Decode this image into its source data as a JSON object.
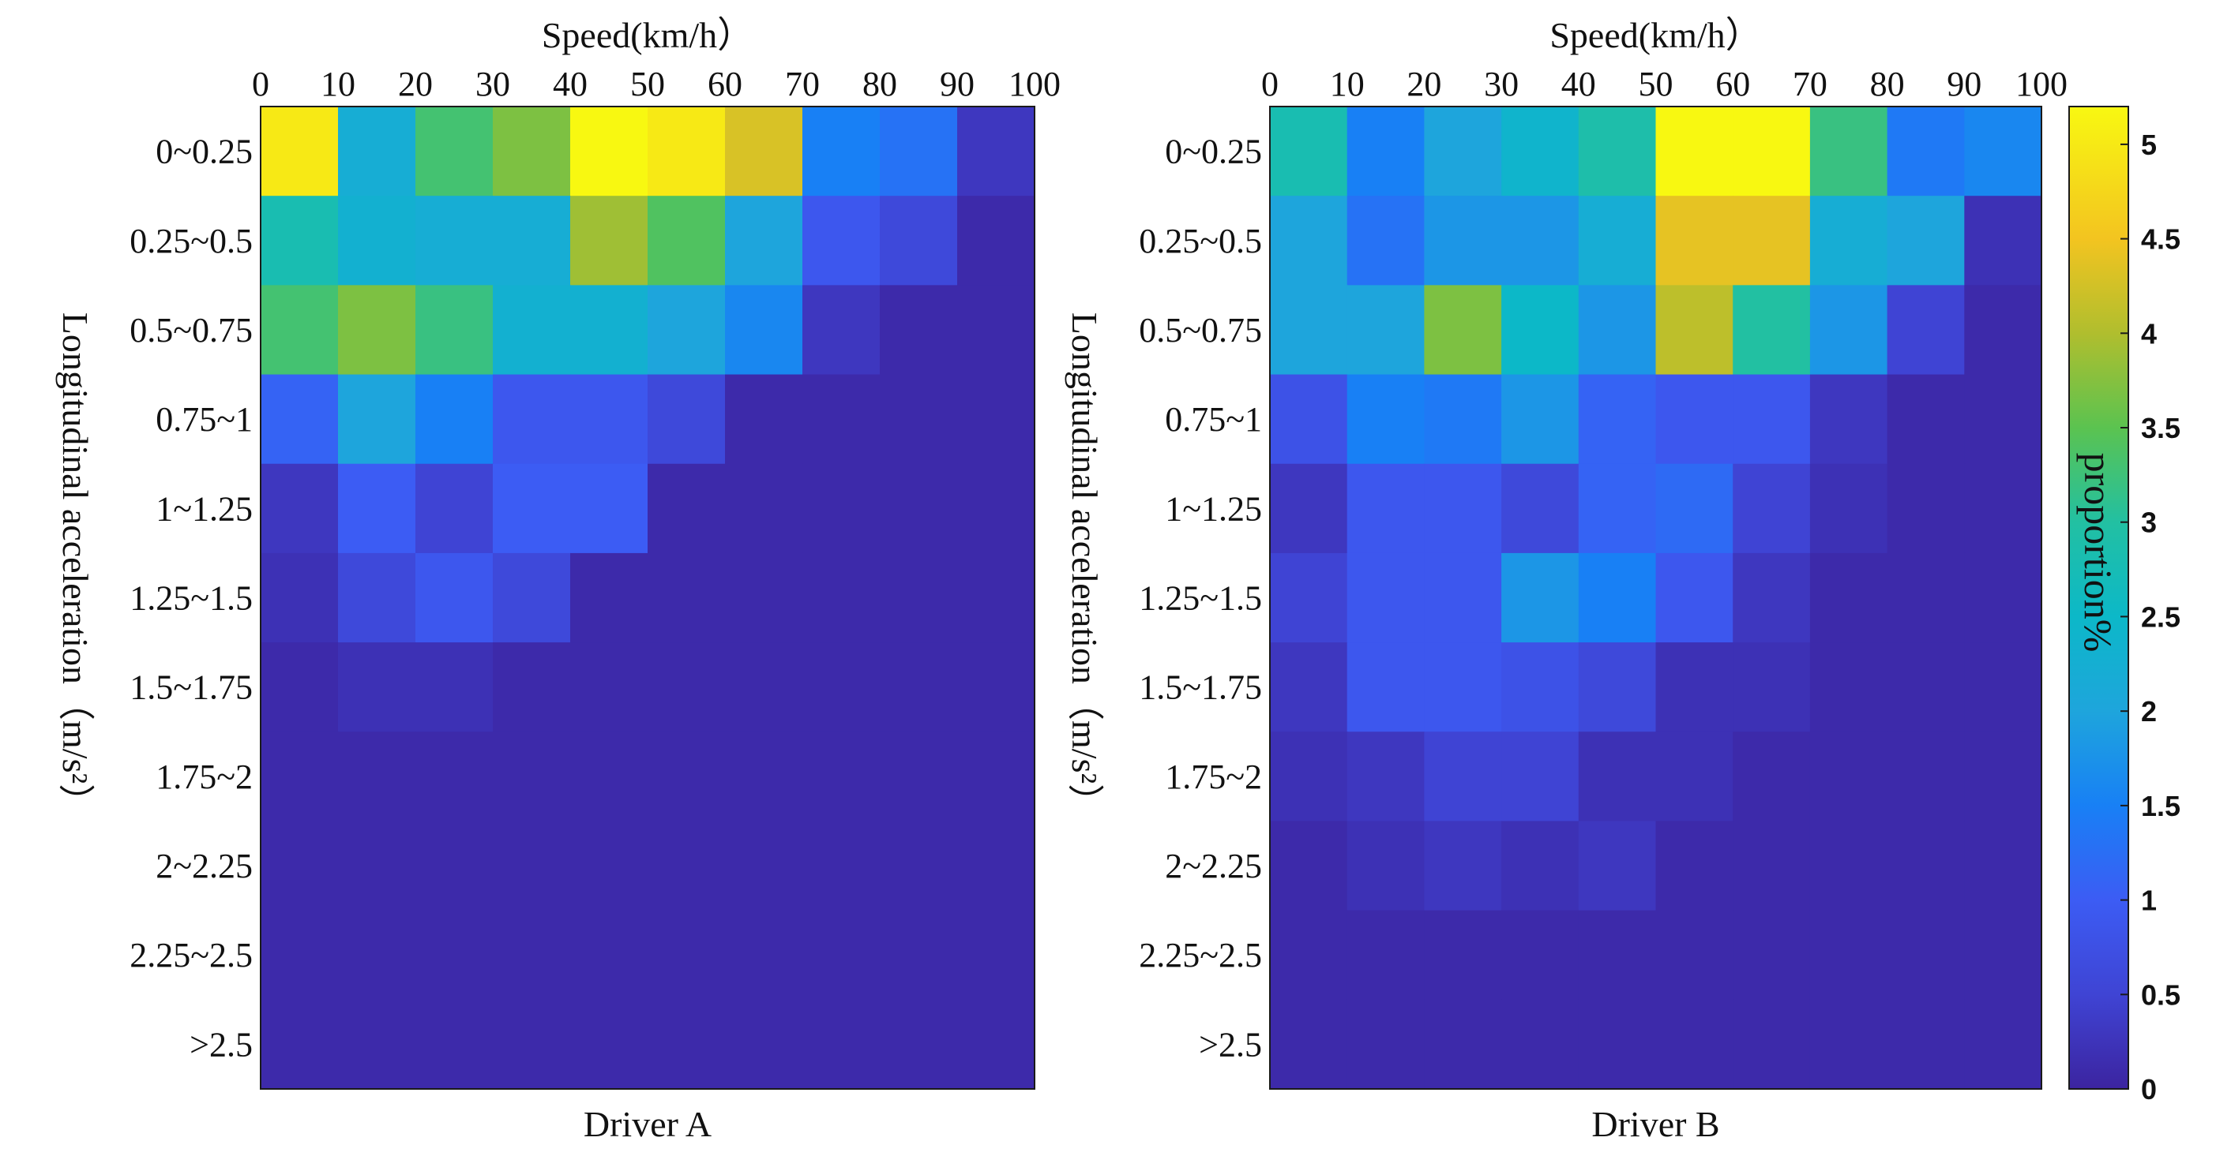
{
  "chart_data": {
    "type": "heatmap",
    "colorbar": {
      "label": "proportion%",
      "range": [
        0,
        5.2
      ],
      "ticks": [
        "0",
        "0.5",
        "1",
        "1.5",
        "2",
        "2.5",
        "3",
        "3.5",
        "4",
        "4.5",
        "5"
      ]
    },
    "panels": [
      {
        "name": "Driver A",
        "xlabel": "Driver A",
        "top_label": "Speed(km/h）",
        "ylabel": "Longitudinal acceleration（m/s²）",
        "x_ticks": [
          "0",
          "10",
          "20",
          "30",
          "40",
          "50",
          "60",
          "70",
          "80",
          "90",
          "100"
        ],
        "y_categories": [
          "0~0.25",
          "0.25~0.5",
          "0.5~0.75",
          "0.75~1",
          "1~1.25",
          "1.25~1.5",
          "1.5~1.75",
          "1.75~2",
          "2~2.25",
          "2.25~2.5",
          ">2.5"
        ],
        "values": [
          [
            5.0,
            2.2,
            3.3,
            3.7,
            5.2,
            5.0,
            4.3,
            1.5,
            1.3,
            0.3
          ],
          [
            2.8,
            2.3,
            2.2,
            2.2,
            3.9,
            3.4,
            2.0,
            0.9,
            0.6,
            0.1
          ],
          [
            3.3,
            3.7,
            3.2,
            2.3,
            2.3,
            2.0,
            1.6,
            0.3,
            0.1,
            0.1
          ],
          [
            1.1,
            2.0,
            1.5,
            0.9,
            0.9,
            0.6,
            0.1,
            0.1,
            0.1,
            0.1
          ],
          [
            0.3,
            1.0,
            0.5,
            1.0,
            1.0,
            0.1,
            0.1,
            0.1,
            0.1,
            0.1
          ],
          [
            0.2,
            0.6,
            0.9,
            0.6,
            0.1,
            0.1,
            0.1,
            0.1,
            0.1,
            0.1
          ],
          [
            0.1,
            0.2,
            0.2,
            0.1,
            0.1,
            0.1,
            0.1,
            0.1,
            0.1,
            0.1
          ],
          [
            0.1,
            0.1,
            0.1,
            0.1,
            0.1,
            0.1,
            0.1,
            0.1,
            0.1,
            0.1
          ],
          [
            0.1,
            0.1,
            0.1,
            0.1,
            0.1,
            0.1,
            0.1,
            0.1,
            0.1,
            0.1
          ],
          [
            0.1,
            0.1,
            0.1,
            0.1,
            0.1,
            0.1,
            0.1,
            0.1,
            0.1,
            0.1
          ],
          [
            0.1,
            0.1,
            0.1,
            0.1,
            0.1,
            0.1,
            0.1,
            0.1,
            0.1,
            0.1
          ]
        ]
      },
      {
        "name": "Driver B",
        "xlabel": "Driver B",
        "top_label": "Speed(km/h）",
        "ylabel": "Longitudinal acceleration（m/s²）",
        "x_ticks": [
          "0",
          "10",
          "20",
          "30",
          "40",
          "50",
          "60",
          "70",
          "80",
          "90",
          "100"
        ],
        "y_categories": [
          "0~0.25",
          "0.25~0.5",
          "0.5~0.75",
          "0.75~1",
          "1~1.25",
          "1.25~1.5",
          "1.5~1.75",
          "1.75~2",
          "2~2.25",
          "2.25~2.5",
          ">2.5"
        ],
        "values": [
          [
            2.8,
            1.5,
            2.0,
            2.4,
            2.9,
            5.2,
            5.2,
            3.2,
            1.4,
            1.6
          ],
          [
            2.0,
            1.3,
            1.8,
            1.8,
            2.2,
            4.4,
            4.4,
            2.2,
            2.0,
            0.2
          ],
          [
            2.0,
            2.0,
            3.7,
            2.5,
            1.8,
            4.1,
            3.0,
            1.8,
            0.5,
            0.1
          ],
          [
            0.8,
            1.5,
            1.4,
            1.8,
            1.1,
            0.9,
            0.9,
            0.3,
            0.1,
            0.1
          ],
          [
            0.3,
            0.9,
            0.9,
            0.6,
            1.1,
            1.2,
            0.5,
            0.2,
            0.1,
            0.1
          ],
          [
            0.5,
            0.9,
            0.9,
            1.8,
            1.5,
            0.9,
            0.3,
            0.1,
            0.1,
            0.1
          ],
          [
            0.3,
            0.9,
            0.9,
            0.8,
            0.6,
            0.2,
            0.2,
            0.1,
            0.1,
            0.1
          ],
          [
            0.2,
            0.3,
            0.5,
            0.5,
            0.2,
            0.2,
            0.1,
            0.1,
            0.1,
            0.1
          ],
          [
            0.1,
            0.2,
            0.3,
            0.2,
            0.3,
            0.1,
            0.1,
            0.1,
            0.1,
            0.1
          ],
          [
            0.1,
            0.1,
            0.1,
            0.1,
            0.1,
            0.1,
            0.1,
            0.1,
            0.1,
            0.1
          ],
          [
            0.1,
            0.1,
            0.1,
            0.1,
            0.1,
            0.1,
            0.1,
            0.1,
            0.1,
            0.1
          ]
        ]
      }
    ]
  }
}
